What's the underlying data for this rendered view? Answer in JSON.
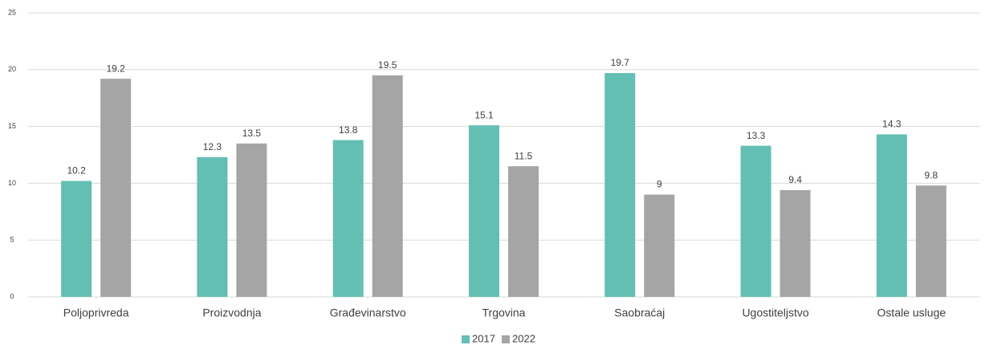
{
  "chart_data": {
    "type": "bar",
    "categories": [
      "Poljoprivreda",
      "Proizvodnja",
      "Građevinarstvo",
      "Trgovina",
      "Saobraćaj",
      "Ugostiteljstvo",
      "Ostale usluge"
    ],
    "series": [
      {
        "name": "2017",
        "color": "#63bfb4",
        "values": [
          10.2,
          12.3,
          13.8,
          15.1,
          19.7,
          13.3,
          14.3
        ]
      },
      {
        "name": "2022",
        "color": "#a5a5a5",
        "values": [
          19.2,
          13.5,
          19.5,
          11.5,
          9,
          9.4,
          9.8
        ]
      }
    ],
    "ylim": [
      0,
      25
    ],
    "yticks": [
      0,
      5,
      10,
      15,
      20,
      25
    ],
    "grid": true,
    "legend": "bottom"
  }
}
